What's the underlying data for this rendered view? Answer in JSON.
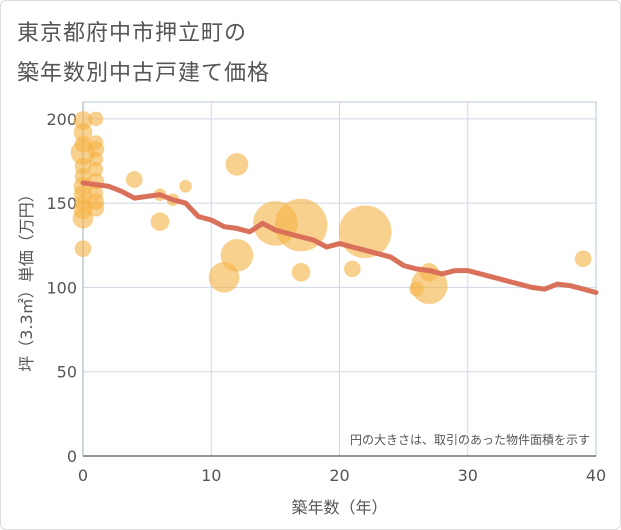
{
  "title_line1": "東京都府中市押立町の",
  "title_line2": "築年数別中古戸建て価格",
  "chart_data": {
    "type": "scatter",
    "xlabel": "築年数（年）",
    "ylabel": "坪（3.3㎡）単価（万円）",
    "xlim": [
      0,
      40
    ],
    "ylim": [
      0,
      210
    ],
    "xticks": [
      0,
      10,
      20,
      30,
      40
    ],
    "yticks": [
      0,
      50,
      100,
      150,
      200
    ],
    "note": "円の大きさは、取引のあった物件面積を示す",
    "colors": {
      "bubble": "#f5b245",
      "trend": "#d9705a",
      "grid": "#cfd8e3",
      "plot_border": "#b9c9da"
    },
    "bubbles": [
      {
        "x": 0,
        "y": 199,
        "s": 9
      },
      {
        "x": 0,
        "y": 192,
        "s": 9
      },
      {
        "x": 0,
        "y": 185,
        "s": 8
      },
      {
        "x": 0,
        "y": 180,
        "s": 12
      },
      {
        "x": 0,
        "y": 172,
        "s": 8
      },
      {
        "x": 0,
        "y": 166,
        "s": 8
      },
      {
        "x": 0,
        "y": 160,
        "s": 9
      },
      {
        "x": 0,
        "y": 155,
        "s": 9
      },
      {
        "x": 0,
        "y": 150,
        "s": 8
      },
      {
        "x": 0,
        "y": 146,
        "s": 9
      },
      {
        "x": 0,
        "y": 141,
        "s": 10
      },
      {
        "x": 0,
        "y": 123,
        "s": 8
      },
      {
        "x": 1,
        "y": 200,
        "s": 7
      },
      {
        "x": 1,
        "y": 186,
        "s": 7
      },
      {
        "x": 1,
        "y": 182,
        "s": 8
      },
      {
        "x": 1,
        "y": 176,
        "s": 7
      },
      {
        "x": 1,
        "y": 170,
        "s": 7
      },
      {
        "x": 1,
        "y": 163,
        "s": 8
      },
      {
        "x": 1,
        "y": 156,
        "s": 7
      },
      {
        "x": 1,
        "y": 151,
        "s": 8
      },
      {
        "x": 1,
        "y": 147,
        "s": 8
      },
      {
        "x": 4,
        "y": 164,
        "s": 8
      },
      {
        "x": 6,
        "y": 155,
        "s": 6
      },
      {
        "x": 6,
        "y": 139,
        "s": 9
      },
      {
        "x": 7,
        "y": 152,
        "s": 6
      },
      {
        "x": 8,
        "y": 160,
        "s": 6
      },
      {
        "x": 12,
        "y": 173,
        "s": 11
      },
      {
        "x": 11,
        "y": 106,
        "s": 15
      },
      {
        "x": 12,
        "y": 119,
        "s": 16
      },
      {
        "x": 15,
        "y": 138,
        "s": 22
      },
      {
        "x": 17,
        "y": 137,
        "s": 26
      },
      {
        "x": 17,
        "y": 109,
        "s": 9
      },
      {
        "x": 21,
        "y": 111,
        "s": 8
      },
      {
        "x": 22,
        "y": 133,
        "s": 26
      },
      {
        "x": 26,
        "y": 99,
        "s": 7
      },
      {
        "x": 27,
        "y": 101,
        "s": 18
      },
      {
        "x": 27,
        "y": 109,
        "s": 9
      },
      {
        "x": 39,
        "y": 117,
        "s": 8
      }
    ],
    "trend": [
      {
        "x": 0,
        "y": 162
      },
      {
        "x": 1,
        "y": 161
      },
      {
        "x": 2,
        "y": 160
      },
      {
        "x": 3,
        "y": 157
      },
      {
        "x": 4,
        "y": 153
      },
      {
        "x": 5,
        "y": 154
      },
      {
        "x": 6,
        "y": 155
      },
      {
        "x": 7,
        "y": 152
      },
      {
        "x": 8,
        "y": 150
      },
      {
        "x": 9,
        "y": 142
      },
      {
        "x": 10,
        "y": 140
      },
      {
        "x": 11,
        "y": 136
      },
      {
        "x": 12,
        "y": 135
      },
      {
        "x": 13,
        "y": 133
      },
      {
        "x": 14,
        "y": 138
      },
      {
        "x": 15,
        "y": 134
      },
      {
        "x": 16,
        "y": 132
      },
      {
        "x": 17,
        "y": 130
      },
      {
        "x": 18,
        "y": 128
      },
      {
        "x": 19,
        "y": 124
      },
      {
        "x": 20,
        "y": 126
      },
      {
        "x": 21,
        "y": 124
      },
      {
        "x": 22,
        "y": 122
      },
      {
        "x": 23,
        "y": 120
      },
      {
        "x": 24,
        "y": 118
      },
      {
        "x": 25,
        "y": 113
      },
      {
        "x": 26,
        "y": 111
      },
      {
        "x": 27,
        "y": 110
      },
      {
        "x": 28,
        "y": 108
      },
      {
        "x": 29,
        "y": 110
      },
      {
        "x": 30,
        "y": 110
      },
      {
        "x": 31,
        "y": 108
      },
      {
        "x": 32,
        "y": 106
      },
      {
        "x": 33,
        "y": 104
      },
      {
        "x": 34,
        "y": 102
      },
      {
        "x": 35,
        "y": 100
      },
      {
        "x": 36,
        "y": 99
      },
      {
        "x": 37,
        "y": 102
      },
      {
        "x": 38,
        "y": 101
      },
      {
        "x": 39,
        "y": 99
      },
      {
        "x": 40,
        "y": 97
      }
    ]
  }
}
